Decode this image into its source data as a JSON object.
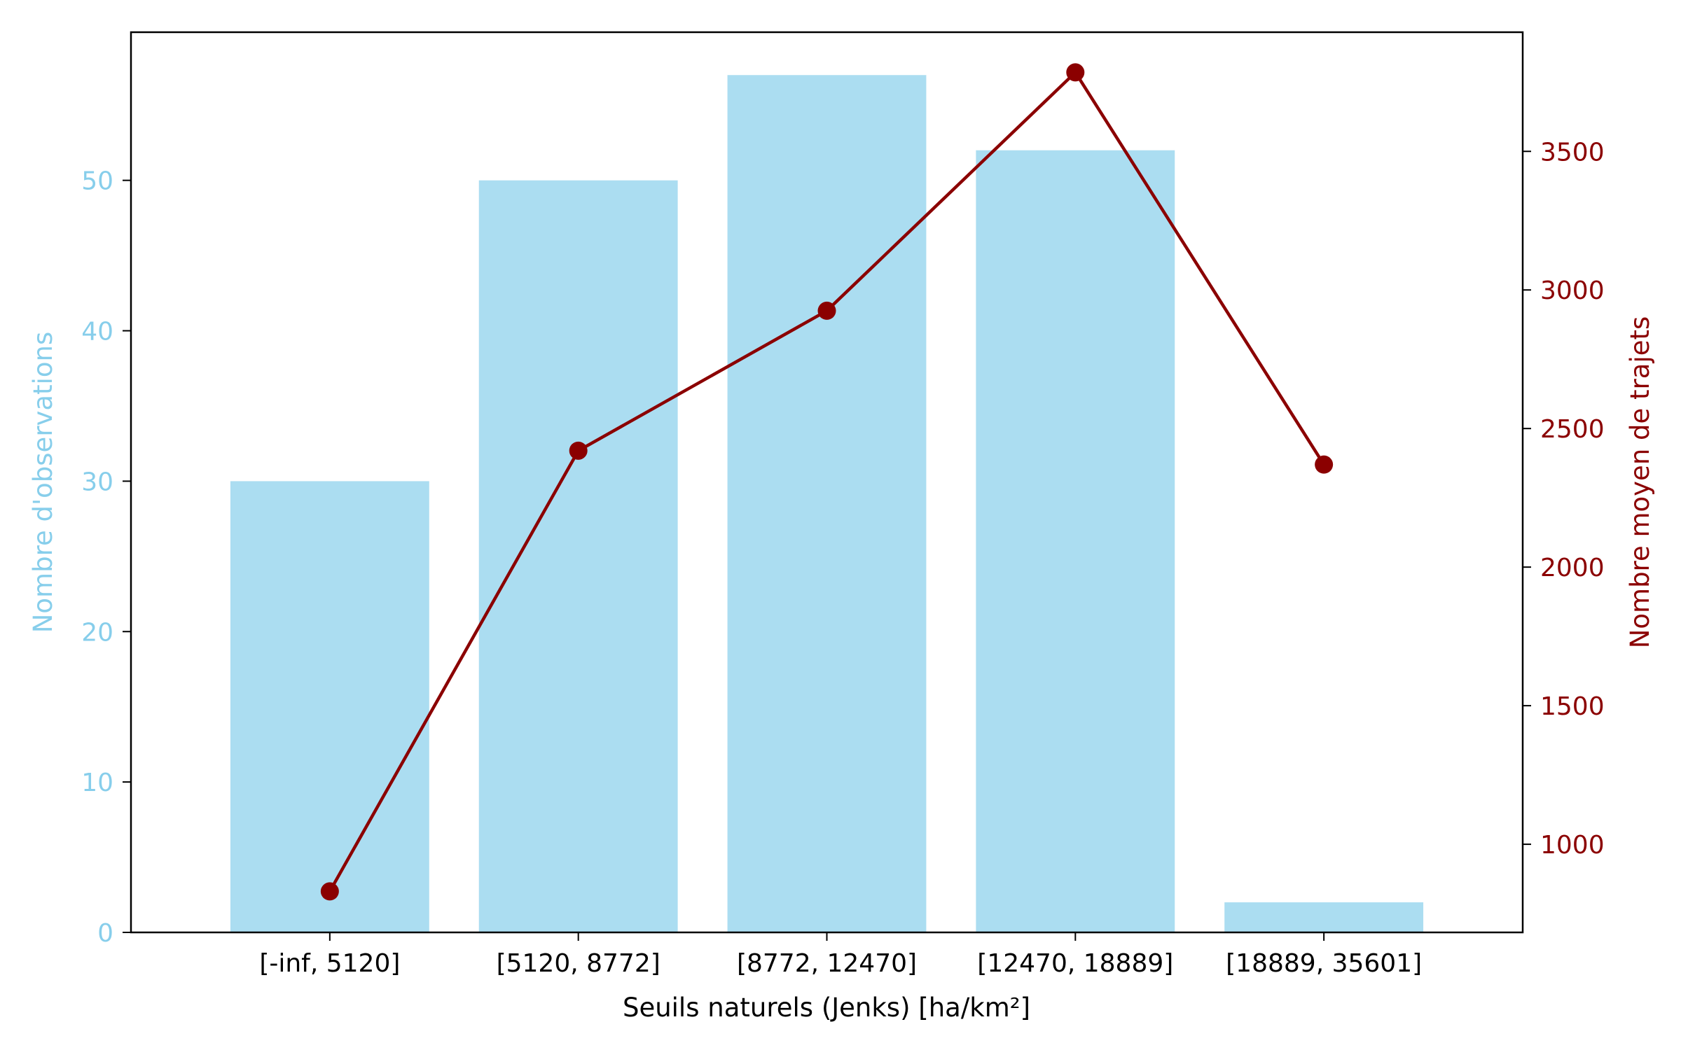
{
  "chart_data": {
    "type": "bar",
    "categories": [
      "[-inf, 5120]",
      "[5120, 8772]",
      "[8772, 12470]",
      "[12470, 18889]",
      "[18889, 35601]"
    ],
    "xlabel": "Seuils naturels (Jenks) [ha/km²]",
    "bar_series": {
      "values": [
        30,
        50,
        57,
        52,
        2
      ],
      "axis": "left",
      "color": "#87ceeb"
    },
    "line_series": {
      "values": [
        830,
        2420,
        2925,
        3785,
        2370
      ],
      "axis": "right",
      "color": "#8b0000",
      "marker": "circle"
    },
    "y_left": {
      "label": "Nombre d'observations",
      "ylim": [
        0,
        59.85
      ],
      "ticks": [
        0,
        10,
        20,
        30,
        40,
        50
      ],
      "color": "#87ceeb"
    },
    "y_right": {
      "label": "Nombre moyen de trajets",
      "ylim": [
        682,
        3930
      ],
      "ticks": [
        1000,
        1500,
        2000,
        2500,
        3000,
        3500
      ],
      "color": "#8b0000"
    },
    "grid": false,
    "legend": "none"
  }
}
